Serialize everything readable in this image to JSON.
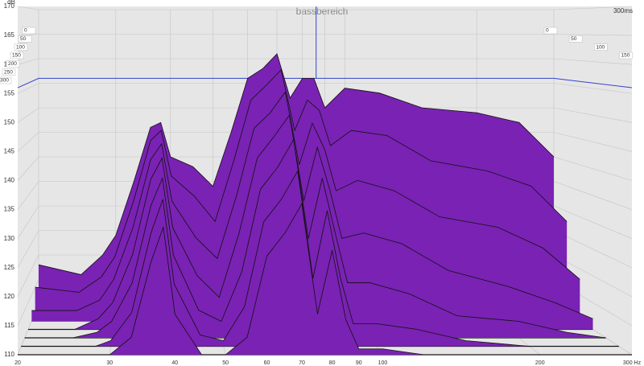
{
  "chart_data": {
    "type": "waterfall",
    "title": "bassbereich",
    "ylabel": "dB",
    "time_axis_label": "300ms",
    "log_x": true,
    "grid": true,
    "xlim": [
      20,
      300
    ],
    "xticks": [
      20,
      30,
      40,
      50,
      60,
      70,
      80,
      90,
      100,
      200,
      {
        "value": 300,
        "label": "300 Hz"
      }
    ],
    "ylim": [
      110,
      170
    ],
    "yticks": [
      110,
      115,
      120,
      125,
      130,
      135,
      140,
      145,
      150,
      155,
      160,
      165,
      170
    ],
    "reference_level": 156,
    "reference_color": "#3344cc",
    "cursor_frequency": 86,
    "x": [
      20,
      25,
      28,
      30,
      33,
      36,
      38,
      40,
      45,
      50,
      55,
      60,
      65,
      70,
      75,
      80,
      85,
      90,
      100,
      120,
      150,
      200,
      250,
      300
    ],
    "series": [
      {
        "name": "0",
        "color": "#7a22b4",
        "values": [
          118,
          116,
          120,
          124,
          135,
          146,
          147,
          140,
          138,
          134,
          145,
          156,
          158,
          161,
          152,
          156,
          156,
          150,
          154,
          153,
          150,
          149,
          147,
          140
        ]
      },
      {
        "name": "50",
        "color": "#7a22b4",
        "values": [
          115,
          114,
          117,
          121,
          132,
          144,
          146,
          137,
          133,
          128,
          140,
          152,
          155,
          158,
          146,
          152,
          150,
          143,
          146,
          145,
          140,
          138,
          135,
          128
        ]
      },
      {
        "name": "100",
        "color": "#7a22b4",
        "values": [
          112,
          112,
          114,
          118,
          128,
          141,
          144,
          133,
          126,
          122,
          134,
          147,
          150,
          154,
          140,
          148,
          143,
          135,
          137,
          135,
          130,
          128,
          124,
          118
        ]
      },
      {
        "name": "150",
        "color": "#7a22b4",
        "values": [
          110,
          110,
          112,
          115,
          124,
          138,
          142,
          129,
          120,
          116,
          128,
          142,
          146,
          150,
          134,
          144,
          136,
          127,
          128,
          126,
          121,
          118,
          115,
          112
        ]
      },
      {
        "name": "200",
        "color": "#7a22b4",
        "values": [
          110,
          110,
          111,
          113,
          120,
          134,
          139,
          125,
          115,
          113,
          122,
          137,
          141,
          146,
          128,
          139,
          129,
          120,
          120,
          118,
          114,
          113,
          111,
          110
        ]
      },
      {
        "name": "250",
        "color": "#7a22b4",
        "values": [
          110,
          110,
          110,
          111,
          116,
          130,
          136,
          121,
          112,
          111,
          117,
          132,
          136,
          141,
          122,
          134,
          122,
          114,
          114,
          113,
          111,
          110,
          110,
          110
        ]
      },
      {
        "name": "300",
        "color": "#7a22b4",
        "values": [
          110,
          110,
          110,
          110,
          113,
          126,
          132,
          117,
          110,
          110,
          113,
          127,
          131,
          136,
          117,
          128,
          116,
          111,
          111,
          110,
          110,
          110,
          110,
          110
        ]
      }
    ]
  }
}
